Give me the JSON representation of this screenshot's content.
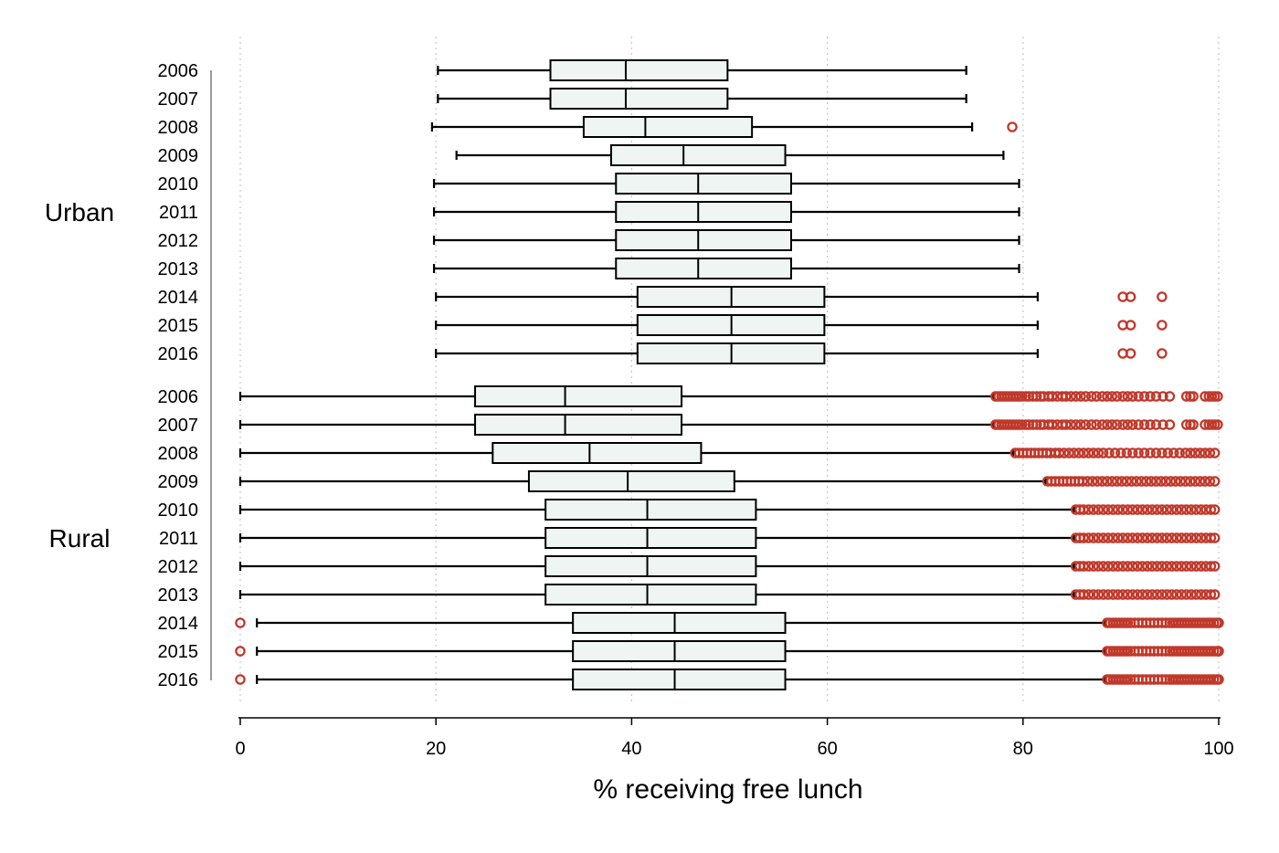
{
  "chart_data": {
    "type": "boxplot",
    "orientation": "horizontal",
    "xlabel": "% receiving free lunch",
    "ylabel": "",
    "xlim": [
      0,
      100
    ],
    "xticks": [
      0,
      20,
      40,
      60,
      80,
      100
    ],
    "grid": "vertical dotted",
    "outlier_color": "#c0392b",
    "box_fill": "#eef5f3",
    "groups": [
      {
        "name": "Urban",
        "rows": [
          {
            "year": "2006",
            "whisker_low": 20.2,
            "q1": 31.7,
            "median": 39.4,
            "q3": 49.8,
            "whisker_high": 74.2,
            "outliers": []
          },
          {
            "year": "2007",
            "whisker_low": 20.2,
            "q1": 31.7,
            "median": 39.4,
            "q3": 49.8,
            "whisker_high": 74.2,
            "outliers": []
          },
          {
            "year": "2008",
            "whisker_low": 19.6,
            "q1": 35.1,
            "median": 41.4,
            "q3": 52.3,
            "whisker_high": 74.8,
            "outliers": [
              78.9
            ]
          },
          {
            "year": "2009",
            "whisker_low": 22.1,
            "q1": 37.9,
            "median": 45.3,
            "q3": 55.7,
            "whisker_high": 78.0,
            "outliers": []
          },
          {
            "year": "2010",
            "whisker_low": 19.8,
            "q1": 38.4,
            "median": 46.8,
            "q3": 56.3,
            "whisker_high": 79.6,
            "outliers": []
          },
          {
            "year": "2011",
            "whisker_low": 19.8,
            "q1": 38.4,
            "median": 46.8,
            "q3": 56.3,
            "whisker_high": 79.6,
            "outliers": []
          },
          {
            "year": "2012",
            "whisker_low": 19.8,
            "q1": 38.4,
            "median": 46.8,
            "q3": 56.3,
            "whisker_high": 79.6,
            "outliers": []
          },
          {
            "year": "2013",
            "whisker_low": 19.8,
            "q1": 38.4,
            "median": 46.8,
            "q3": 56.3,
            "whisker_high": 79.6,
            "outliers": []
          },
          {
            "year": "2014",
            "whisker_low": 20.0,
            "q1": 40.6,
            "median": 50.2,
            "q3": 59.7,
            "whisker_high": 81.5,
            "outliers": [
              90.2,
              91.0,
              94.2
            ]
          },
          {
            "year": "2015",
            "whisker_low": 20.0,
            "q1": 40.6,
            "median": 50.2,
            "q3": 59.7,
            "whisker_high": 81.5,
            "outliers": [
              90.2,
              91.0,
              94.2
            ]
          },
          {
            "year": "2016",
            "whisker_low": 20.0,
            "q1": 40.6,
            "median": 50.2,
            "q3": 59.7,
            "whisker_high": 81.5,
            "outliers": [
              90.2,
              91.0,
              94.2
            ]
          }
        ]
      },
      {
        "name": "Rural",
        "rows": [
          {
            "year": "2006",
            "whisker_low": 0,
            "q1": 24.0,
            "median": 33.2,
            "q3": 45.1,
            "whisker_high": 77.0,
            "outliers": [
              77.2,
              77.5,
              77.8,
              78.1,
              78.4,
              78.7,
              79.0,
              79.3,
              79.6,
              79.9,
              80.3,
              80.6,
              81.0,
              81.4,
              81.8,
              82.1,
              82.6,
              83.0,
              83.5,
              84.0,
              84.4,
              84.9,
              85.4,
              85.9,
              86.4,
              87.0,
              87.5,
              88.1,
              88.6,
              89.1,
              89.6,
              90.2,
              90.7,
              91.2,
              91.8,
              92.4,
              93.0,
              93.6,
              94.3,
              95.0,
              96.7,
              97.1,
              97.4,
              98.6,
              99.0,
              99.3,
              99.6,
              99.9
            ]
          },
          {
            "year": "2007",
            "whisker_low": 0,
            "q1": 24.0,
            "median": 33.2,
            "q3": 45.1,
            "whisker_high": 77.0,
            "outliers": [
              77.2,
              77.5,
              77.8,
              78.1,
              78.4,
              78.7,
              79.0,
              79.3,
              79.6,
              79.9,
              80.3,
              80.6,
              81.0,
              81.4,
              81.8,
              82.1,
              82.6,
              83.0,
              83.5,
              84.0,
              84.4,
              84.9,
              85.4,
              85.9,
              86.4,
              87.0,
              87.5,
              88.1,
              88.6,
              89.1,
              89.6,
              90.2,
              90.7,
              91.2,
              91.8,
              92.4,
              93.0,
              93.6,
              94.3,
              95.0,
              96.7,
              97.1,
              97.4,
              98.6,
              99.0,
              99.3,
              99.6,
              99.9
            ]
          },
          {
            "year": "2008",
            "whisker_low": 0,
            "q1": 25.8,
            "median": 35.7,
            "q3": 47.1,
            "whisker_high": 79.0,
            "outliers": [
              79.2,
              79.6,
              80.0,
              80.4,
              80.8,
              81.2,
              81.6,
              82.0,
              82.4,
              82.8,
              83.3,
              83.7,
              84.2,
              84.7,
              85.2,
              85.7,
              86.2,
              86.7,
              87.2,
              87.7,
              88.2,
              88.8,
              89.4,
              90.0,
              90.6,
              91.2,
              91.8,
              92.4,
              93.0,
              93.6,
              94.2,
              94.8,
              95.4,
              96.0,
              96.6,
              97.1,
              97.6,
              98.1,
              98.6,
              99.1,
              99.6
            ]
          },
          {
            "year": "2009",
            "whisker_low": 0,
            "q1": 29.5,
            "median": 39.6,
            "q3": 50.5,
            "whisker_high": 82.3,
            "outliers": [
              82.5,
              82.9,
              83.3,
              83.7,
              84.1,
              84.5,
              84.9,
              85.3,
              85.7,
              86.1,
              86.6,
              87.1,
              87.6,
              88.1,
              88.6,
              89.1,
              89.6,
              90.1,
              90.6,
              91.1,
              91.6,
              92.1,
              92.6,
              93.1,
              93.6,
              94.1,
              94.6,
              95.1,
              95.6,
              96.1,
              96.6,
              97.1,
              97.6,
              98.1,
              98.6,
              99.1,
              99.6
            ]
          },
          {
            "year": "2010",
            "whisker_low": 0,
            "q1": 31.2,
            "median": 41.6,
            "q3": 52.7,
            "whisker_high": 85.2,
            "outliers": [
              85.4,
              85.8,
              86.2,
              86.7,
              87.2,
              87.7,
              88.2,
              88.7,
              89.2,
              89.7,
              90.2,
              90.7,
              91.2,
              91.7,
              92.2,
              92.7,
              93.2,
              93.7,
              94.2,
              94.7,
              95.2,
              95.7,
              96.2,
              96.7,
              97.2,
              97.7,
              98.2,
              98.7,
              99.2,
              99.6
            ]
          },
          {
            "year": "2011",
            "whisker_low": 0,
            "q1": 31.2,
            "median": 41.6,
            "q3": 52.7,
            "whisker_high": 85.2,
            "outliers": [
              85.4,
              85.8,
              86.2,
              86.7,
              87.2,
              87.7,
              88.2,
              88.7,
              89.2,
              89.7,
              90.2,
              90.7,
              91.2,
              91.7,
              92.2,
              92.7,
              93.2,
              93.7,
              94.2,
              94.7,
              95.2,
              95.7,
              96.2,
              96.7,
              97.2,
              97.7,
              98.2,
              98.7,
              99.2,
              99.6
            ]
          },
          {
            "year": "2012",
            "whisker_low": 0,
            "q1": 31.2,
            "median": 41.6,
            "q3": 52.7,
            "whisker_high": 85.2,
            "outliers": [
              85.4,
              85.8,
              86.2,
              86.7,
              87.2,
              87.7,
              88.2,
              88.7,
              89.2,
              89.7,
              90.2,
              90.7,
              91.2,
              91.7,
              92.2,
              92.7,
              93.2,
              93.7,
              94.2,
              94.7,
              95.2,
              95.7,
              96.2,
              96.7,
              97.2,
              97.7,
              98.2,
              98.7,
              99.2,
              99.6
            ]
          },
          {
            "year": "2013",
            "whisker_low": 0,
            "q1": 31.2,
            "median": 41.6,
            "q3": 52.7,
            "whisker_high": 85.2,
            "outliers": [
              85.4,
              85.8,
              86.2,
              86.7,
              87.2,
              87.7,
              88.2,
              88.7,
              89.2,
              89.7,
              90.2,
              90.7,
              91.2,
              91.7,
              92.2,
              92.7,
              93.2,
              93.7,
              94.2,
              94.7,
              95.2,
              95.7,
              96.2,
              96.7,
              97.2,
              97.7,
              98.2,
              98.7,
              99.2,
              99.6
            ]
          },
          {
            "year": "2014",
            "whisker_low": 1.7,
            "q1": 34.0,
            "median": 44.4,
            "q3": 55.7,
            "whisker_high": 88.4,
            "outliers": [
              0,
              88.6,
              88.9,
              89.2,
              89.5,
              89.8,
              90.1,
              90.4,
              90.7,
              91.0,
              91.4,
              91.8,
              92.2,
              92.6,
              93.0,
              93.4,
              93.8,
              94.2,
              94.6,
              95.0,
              95.3,
              95.6,
              95.9,
              96.2,
              96.5,
              96.8,
              97.1,
              97.4,
              97.7,
              98.0,
              98.3,
              98.6,
              98.9,
              99.2,
              99.5,
              99.8,
              100
            ]
          },
          {
            "year": "2015",
            "whisker_low": 1.7,
            "q1": 34.0,
            "median": 44.4,
            "q3": 55.7,
            "whisker_high": 88.4,
            "outliers": [
              0,
              88.6,
              88.9,
              89.2,
              89.5,
              89.8,
              90.1,
              90.4,
              90.7,
              91.0,
              91.4,
              91.8,
              92.2,
              92.6,
              93.0,
              93.4,
              93.8,
              94.2,
              94.6,
              95.0,
              95.3,
              95.6,
              95.9,
              96.2,
              96.5,
              96.8,
              97.1,
              97.4,
              97.7,
              98.0,
              98.3,
              98.6,
              98.9,
              99.2,
              99.5,
              99.8,
              100
            ]
          },
          {
            "year": "2016",
            "whisker_low": 1.7,
            "q1": 34.0,
            "median": 44.4,
            "q3": 55.7,
            "whisker_high": 88.4,
            "outliers": [
              0,
              88.6,
              88.9,
              89.2,
              89.5,
              89.8,
              90.1,
              90.4,
              90.7,
              91.0,
              91.4,
              91.8,
              92.2,
              92.6,
              93.0,
              93.4,
              93.8,
              94.2,
              94.6,
              95.0,
              95.3,
              95.6,
              95.9,
              96.2,
              96.5,
              96.8,
              97.1,
              97.4,
              97.7,
              98.0,
              98.3,
              98.6,
              98.9,
              99.2,
              99.5,
              99.8,
              100
            ]
          }
        ]
      }
    ]
  }
}
